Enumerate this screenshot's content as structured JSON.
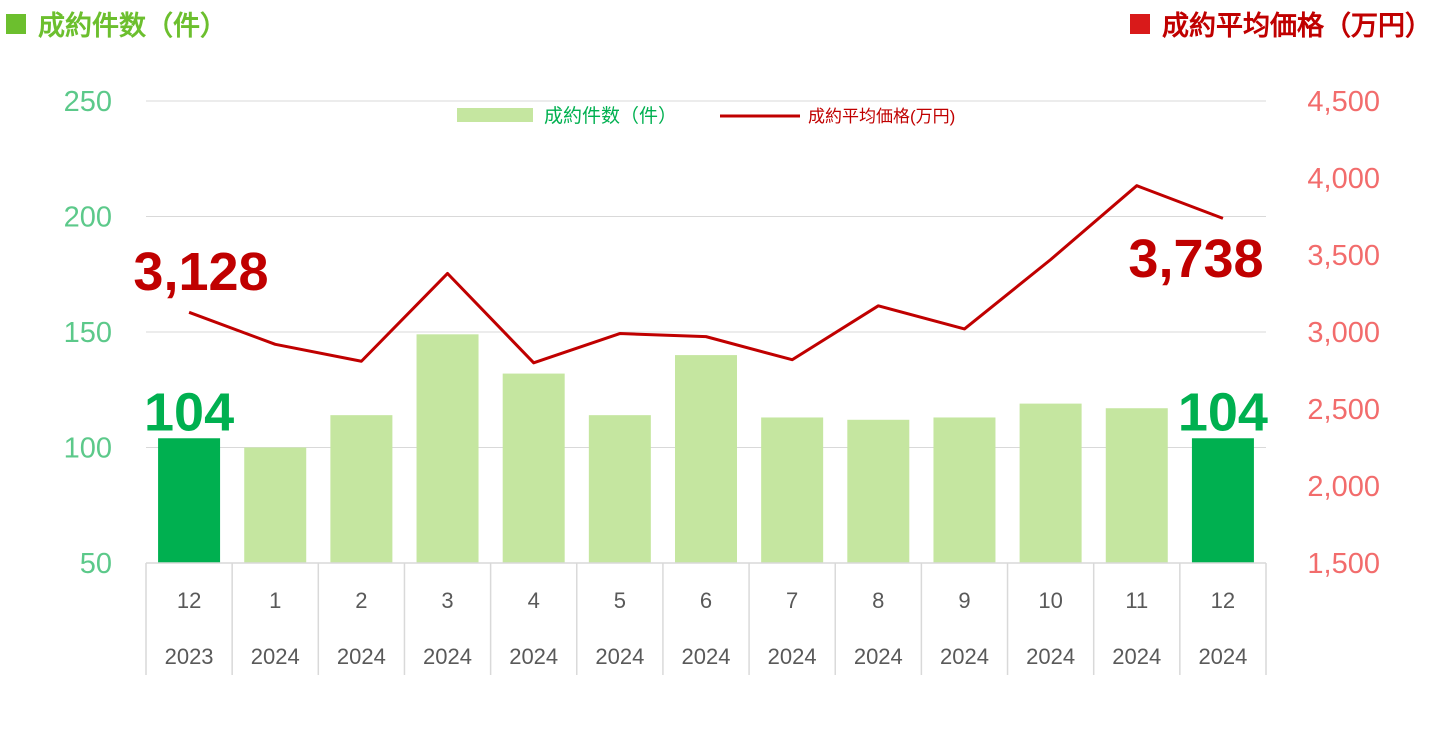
{
  "header": {
    "left_title": "成約件数（件）",
    "right_title": "成約平均価格（万円）"
  },
  "colors": {
    "bar": "#c5e6a0",
    "bar_highlight": "#00b050",
    "line": "#c00000",
    "left_axis": "#5cc98a",
    "right_axis": "#f26c6c",
    "grid": "#d9d9d9",
    "cat_text": "#595959",
    "count_label": "#00b050",
    "price_label": "#c00000",
    "header_left": "#6cbf2e",
    "header_right": "#d91a1a"
  },
  "chart_data": {
    "type": "bar+line",
    "legend": {
      "position": "top-center",
      "entries": [
        "成約件数（件）",
        "成約平均価格(万円)"
      ]
    },
    "categories": [
      {
        "month": "12",
        "year": "2023"
      },
      {
        "month": "1",
        "year": "2024"
      },
      {
        "month": "2",
        "year": "2024"
      },
      {
        "month": "3",
        "year": "2024"
      },
      {
        "month": "4",
        "year": "2024"
      },
      {
        "month": "5",
        "year": "2024"
      },
      {
        "month": "6",
        "year": "2024"
      },
      {
        "month": "7",
        "year": "2024"
      },
      {
        "month": "8",
        "year": "2024"
      },
      {
        "month": "9",
        "year": "2024"
      },
      {
        "month": "10",
        "year": "2024"
      },
      {
        "month": "11",
        "year": "2024"
      },
      {
        "month": "12",
        "year": "2024"
      }
    ],
    "series": [
      {
        "name": "成約件数（件）",
        "type": "bar",
        "axis": "left",
        "values": [
          104,
          100,
          114,
          149,
          132,
          114,
          140,
          113,
          112,
          113,
          119,
          117,
          104
        ],
        "highlighted": [
          0,
          12
        ]
      },
      {
        "name": "成約平均価格(万円)",
        "type": "line",
        "axis": "right",
        "values": [
          3128,
          2920,
          2810,
          3380,
          2800,
          2990,
          2970,
          2820,
          3170,
          3020,
          3470,
          3950,
          3738
        ]
      }
    ],
    "left_axis": {
      "min": 50,
      "max": 250,
      "ticks": [
        "50",
        "100",
        "150",
        "200",
        "250"
      ]
    },
    "right_axis": {
      "min": 1500,
      "max": 4500,
      "ticks": [
        "1,500",
        "2,000",
        "2,500",
        "3,000",
        "3,500",
        "4,000",
        "4,500"
      ]
    },
    "grid": true,
    "annotations": {
      "first_count": "104",
      "last_count": "104",
      "first_price": "3,128",
      "last_price": "3,738"
    }
  }
}
